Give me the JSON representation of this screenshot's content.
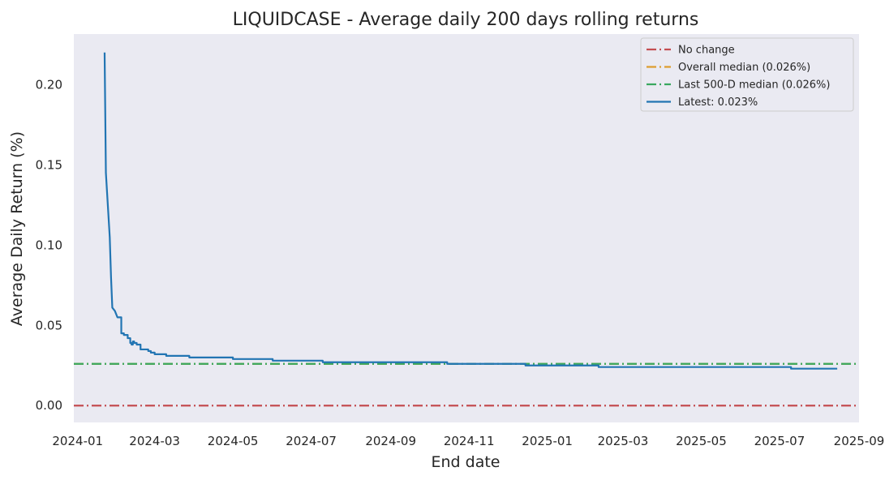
{
  "chart_data": {
    "type": "line",
    "title": "LIQUIDCASE - Average daily 200 days rolling returns",
    "xlabel": "End date",
    "ylabel": "Average Daily Return (%)",
    "xlim": [
      "2023-12-29",
      "2025-09-01"
    ],
    "ylim": [
      -0.0105,
      0.2315
    ],
    "x_ticks": [
      "2024-01",
      "2024-03",
      "2024-05",
      "2024-07",
      "2024-09",
      "2024-11",
      "2025-01",
      "2025-03",
      "2025-05",
      "2025-07",
      "2025-09"
    ],
    "y_ticks": [
      "0.00",
      "0.05",
      "0.10",
      "0.15",
      "0.20"
    ],
    "grid": false,
    "legend_position": "top-right",
    "reference_lines": [
      {
        "name": "No change",
        "y": 0.0,
        "color": "#c44e52",
        "style": "dash-dot"
      },
      {
        "name": "Overall median (0.026%)",
        "y": 0.026,
        "color": "#dd9e2f",
        "style": "dash-dot"
      },
      {
        "name": "Last 500-D median (0.026%)",
        "y": 0.026,
        "color": "#3aa85f",
        "style": "dash-dot"
      }
    ],
    "series": [
      {
        "name": "Latest: 0.023%",
        "color": "#2275b3",
        "x": [
          "2024-01-22",
          "2024-01-23",
          "2024-01-26",
          "2024-01-27",
          "2024-01-28",
          "2024-01-30",
          "2024-02-01",
          "2024-02-04",
          "2024-02-06",
          "2024-02-09",
          "2024-02-11",
          "2024-02-12",
          "2024-02-13",
          "2024-02-14",
          "2024-02-16",
          "2024-02-19",
          "2024-02-22",
          "2024-02-25",
          "2024-02-27",
          "2024-03-01",
          "2024-03-05",
          "2024-03-10",
          "2024-03-15",
          "2024-03-20",
          "2024-03-25",
          "2024-03-28",
          "2024-04-05",
          "2024-04-15",
          "2024-04-25",
          "2024-05-01",
          "2024-05-05",
          "2024-05-10",
          "2024-05-20",
          "2024-06-01",
          "2024-06-15",
          "2024-07-01",
          "2024-07-03",
          "2024-07-10",
          "2024-08-01",
          "2024-09-12",
          "2024-09-15",
          "2024-10-15",
          "2024-11-05",
          "2024-12-15",
          "2025-01-15",
          "2025-02-06",
          "2025-02-10",
          "2025-03-15",
          "2025-04-10",
          "2025-05-01",
          "2025-06-01",
          "2025-07-08",
          "2025-07-10",
          "2025-08-15"
        ],
        "y": [
          0.22,
          0.145,
          0.105,
          0.08,
          0.061,
          0.059,
          0.055,
          0.045,
          0.044,
          0.042,
          0.039,
          0.038,
          0.04,
          0.039,
          0.038,
          0.035,
          0.035,
          0.034,
          0.033,
          0.032,
          0.032,
          0.031,
          0.031,
          0.031,
          0.031,
          0.03,
          0.03,
          0.03,
          0.03,
          0.029,
          0.029,
          0.029,
          0.029,
          0.028,
          0.028,
          0.028,
          0.028,
          0.027,
          0.027,
          0.027,
          0.027,
          0.026,
          0.026,
          0.025,
          0.025,
          0.025,
          0.024,
          0.024,
          0.024,
          0.024,
          0.024,
          0.024,
          0.023,
          0.023
        ]
      }
    ]
  }
}
